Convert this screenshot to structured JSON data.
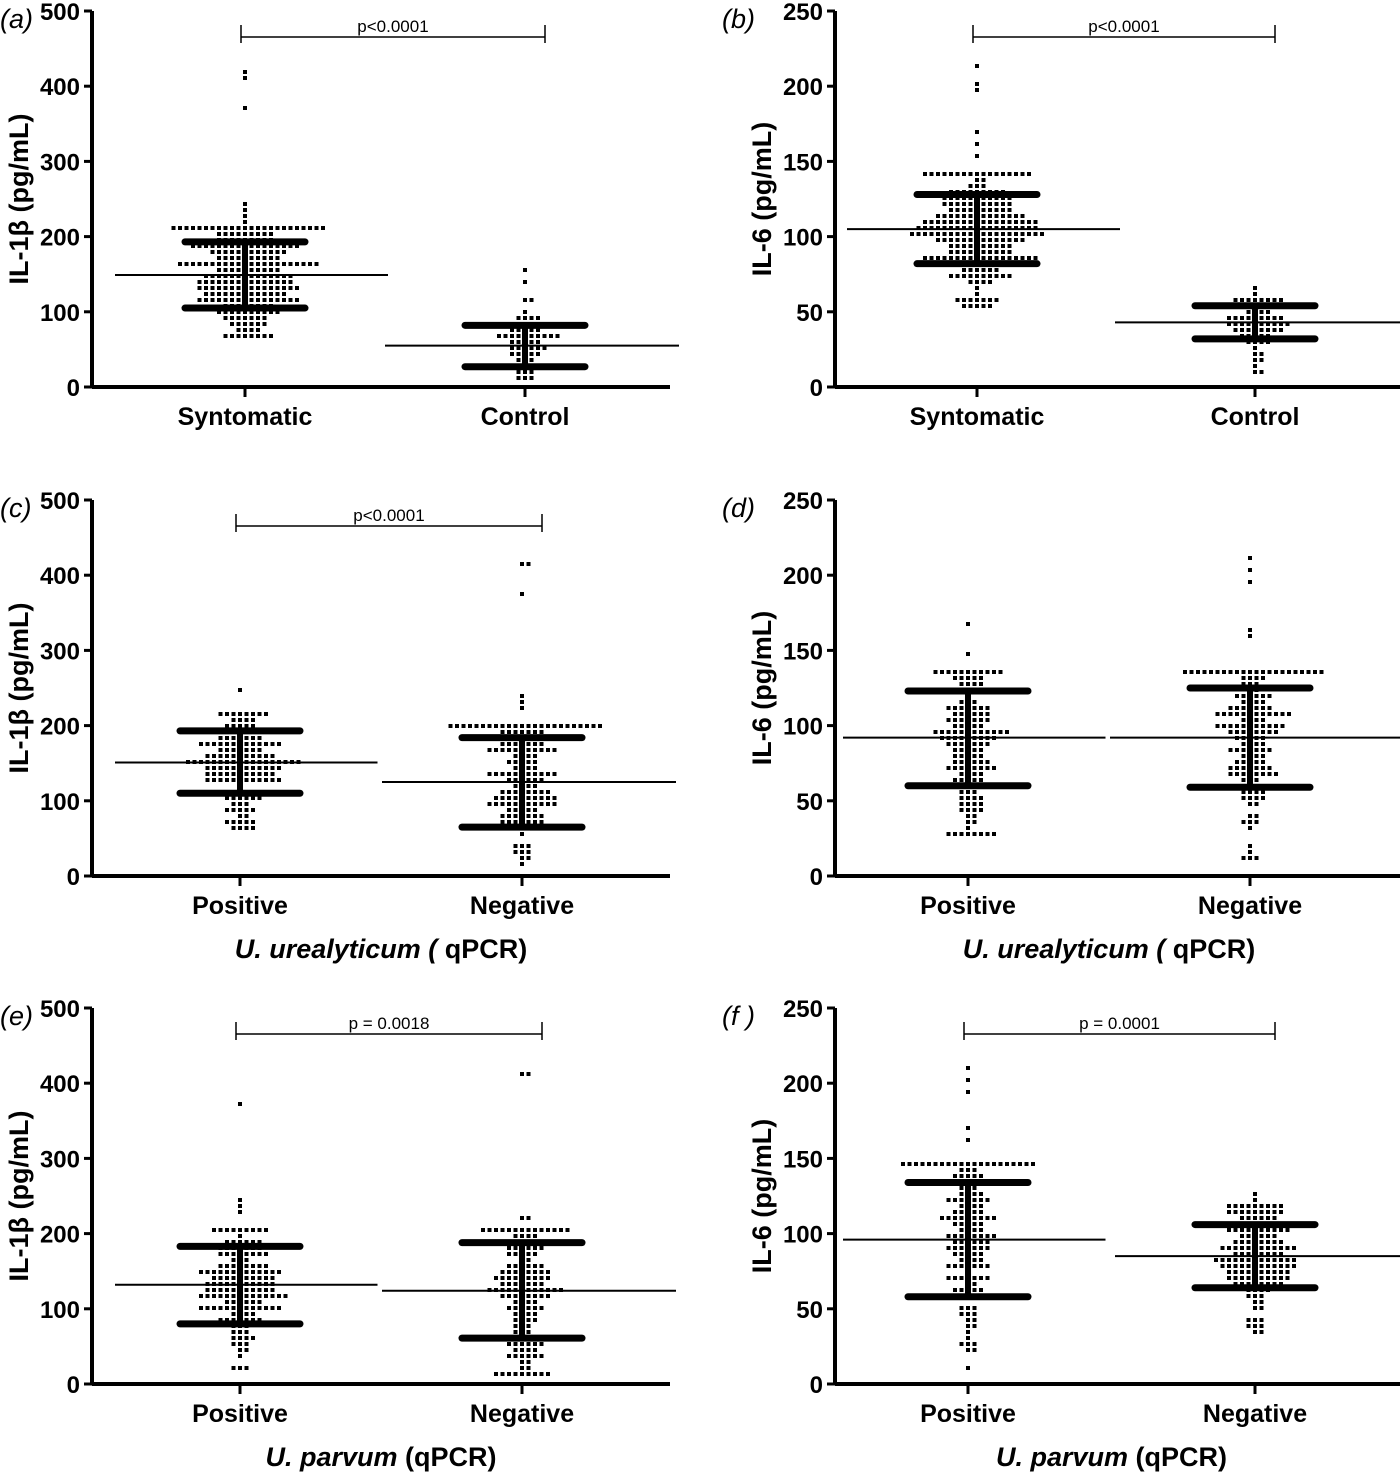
{
  "chart_data": [
    {
      "panel": "(a)",
      "type": "scatter",
      "ylabel": "IL-1β (pg/mL)",
      "xlabel": "",
      "ylim": [
        0,
        500
      ],
      "yticks": [
        0,
        100,
        200,
        300,
        400,
        500
      ],
      "categories": [
        "Syntomatic",
        "Control"
      ],
      "groups": [
        {
          "category": "Syntomatic",
          "mean": 149,
          "sd_upper": 193,
          "sd_lower": 105,
          "min": 70,
          "max": 416,
          "outliers": [
            416,
            412,
            375,
            244,
            238,
            225,
            218
          ]
        },
        {
          "category": "Control",
          "mean": 55,
          "sd_upper": 82,
          "sd_lower": 27,
          "min": 15,
          "max": 157,
          "outliers": [
            157,
            137,
            117,
            112,
            100
          ]
        }
      ],
      "significance": {
        "label": "p<0.0001",
        "between": [
          "Syntomatic",
          "Control"
        ]
      }
    },
    {
      "panel": "(b)",
      "type": "scatter",
      "ylabel": "IL-6 (pg/mL)",
      "xlabel": "",
      "ylim": [
        0,
        250
      ],
      "yticks": [
        0,
        50,
        100,
        150,
        200,
        250
      ],
      "categories": [
        "Syntomatic",
        "Control"
      ],
      "groups": [
        {
          "category": "Syntomatic",
          "mean": 105,
          "sd_upper": 128,
          "sd_lower": 82,
          "min": 54,
          "max": 212,
          "outliers": [
            212,
            203,
            196,
            170,
            162,
            153,
            73,
            58,
            54
          ]
        },
        {
          "category": "Control",
          "mean": 43,
          "sd_upper": 54,
          "sd_lower": 32,
          "min": 11,
          "max": 64,
          "outliers": [
            64,
            62,
            22,
            11
          ]
        }
      ],
      "significance": {
        "label": "p<0.0001",
        "between": [
          "Syntomatic",
          "Control"
        ]
      }
    },
    {
      "panel": "(c)",
      "type": "scatter",
      "ylabel": "IL-1β (pg/mL)",
      "xlabel": {
        "italic": "U. urealyticum (",
        "normal": " qPCR)"
      },
      "ylim": [
        0,
        500
      ],
      "yticks": [
        0,
        100,
        200,
        300,
        400,
        500
      ],
      "categories": [
        "Positive",
        "Negative"
      ],
      "groups": [
        {
          "category": "Positive",
          "mean": 151,
          "sd_upper": 193,
          "sd_lower": 110,
          "min": 65,
          "max": 244,
          "outliers": [
            244,
            200,
            70,
            65
          ]
        },
        {
          "category": "Negative",
          "mean": 125,
          "sd_upper": 184,
          "sd_lower": 65,
          "min": 17,
          "max": 416,
          "outliers": [
            416,
            412,
            375,
            240,
            230,
            220
          ]
        }
      ],
      "significance": {
        "label": "p<0.0001",
        "between": [
          "Positive",
          "Negative"
        ]
      }
    },
    {
      "panel": "(d)",
      "type": "scatter",
      "ylabel": "IL-6 (pg/mL)",
      "xlabel": {
        "italic": "U. urealyticum (",
        "normal": " qPCR)"
      },
      "ylim": [
        0,
        250
      ],
      "yticks": [
        0,
        50,
        100,
        150,
        200,
        250
      ],
      "categories": [
        "Positive",
        "Negative"
      ],
      "groups": [
        {
          "category": "Positive",
          "mean": 92,
          "sd_upper": 123,
          "sd_lower": 60,
          "min": 26,
          "max": 169,
          "outliers": [
            169,
            147,
            135,
            26
          ]
        },
        {
          "category": "Negative",
          "mean": 92,
          "sd_upper": 125,
          "sd_lower": 59,
          "min": 11,
          "max": 212,
          "outliers": [
            212,
            203,
            196,
            162,
            158,
            11
          ]
        }
      ],
      "significance": null
    },
    {
      "panel": "(e)",
      "type": "scatter",
      "ylabel": "IL-1β (pg/mL)",
      "xlabel": {
        "italic": "U. parvum",
        "normal": " (qPCR)"
      },
      "ylim": [
        0,
        500
      ],
      "yticks": [
        0,
        100,
        200,
        300,
        400,
        500
      ],
      "categories": [
        "Positive",
        "Negative"
      ],
      "groups": [
        {
          "category": "Positive",
          "mean": 132,
          "sd_upper": 183,
          "sd_lower": 80,
          "min": 20,
          "max": 375,
          "outliers": [
            375,
            244,
            238,
            225
          ]
        },
        {
          "category": "Negative",
          "mean": 124,
          "sd_upper": 188,
          "sd_lower": 61,
          "min": 15,
          "max": 416,
          "outliers": [
            416,
            412,
            220,
            218
          ]
        }
      ],
      "significance": {
        "label": "p = 0.0018",
        "between": [
          "Positive",
          "Negative"
        ]
      }
    },
    {
      "panel": "(f )",
      "type": "scatter",
      "ylabel": "IL-6 (pg/mL)",
      "xlabel": {
        "italic": "U. parvum",
        "normal": " (qPCR)"
      },
      "ylim": [
        0,
        250
      ],
      "yticks": [
        0,
        50,
        100,
        150,
        200,
        250
      ],
      "categories": [
        "Positive",
        "Negative"
      ],
      "groups": [
        {
          "category": "Positive",
          "mean": 96,
          "sd_upper": 134,
          "sd_lower": 58,
          "min": 11,
          "max": 212,
          "outliers": [
            212,
            203,
            196,
            169,
            163,
            11
          ]
        },
        {
          "category": "Negative",
          "mean": 85,
          "sd_upper": 106,
          "sd_lower": 64,
          "min": 35,
          "max": 128,
          "outliers": [
            128,
            123,
            36,
            35
          ]
        }
      ],
      "significance": {
        "label": "p = 0.0001",
        "between": [
          "Positive",
          "Negative"
        ]
      }
    }
  ]
}
